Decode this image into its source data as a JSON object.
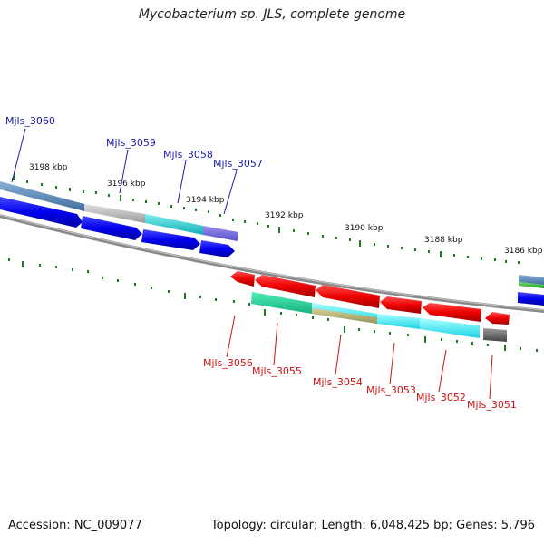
{
  "title": "Mycobacterium sp. JLS, complete genome",
  "footer": {
    "accession": "Accession: NC_009077",
    "summary": "Topology: circular; Length: 6,048,425 bp; Genes: 5,796"
  },
  "ticks": [
    "3198 kbp",
    "3196 kbp",
    "3194 kbp",
    "3192 kbp",
    "3190 kbp",
    "3188 kbp",
    "3186 kbp"
  ],
  "genes_top": [
    "Mjls_3060",
    "Mjls_3059",
    "Mjls_3058",
    "Mjls_3057"
  ],
  "genes_bottom": [
    "Mjls_3056",
    "Mjls_3055",
    "Mjls_3054",
    "Mjls_3053",
    "Mjls_3052",
    "Mjls_3051"
  ],
  "colors": {
    "top_label": "#1a1aaa",
    "bottom_label": "#cc1111",
    "backbone": "#8a8a8a",
    "tick": "#1f7a1f"
  }
}
